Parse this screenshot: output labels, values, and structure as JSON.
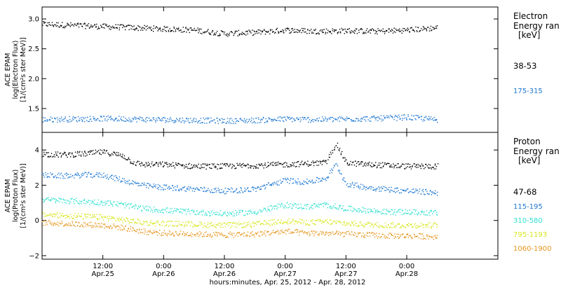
{
  "chart_data": [
    {
      "type": "scatter",
      "panel": "electron",
      "ylabel_lines": [
        "ACE EPAM",
        "log(Electron Flux)",
        "[1/(cm²s ster MeV)]"
      ],
      "ylim": [
        1.1,
        3.2
      ],
      "yticks": [
        1.5,
        2.0,
        2.5,
        3.0
      ],
      "ytick_labels": [
        "1.5",
        "2.0",
        "2.5",
        "3.0"
      ],
      "legend_title_lines": [
        "Electron",
        "Energy ran",
        "[keV]"
      ],
      "series": [
        {
          "name": "38-53",
          "color": "#000000",
          "x": [
            0,
            6,
            12,
            18,
            24,
            30,
            36,
            42,
            48,
            54,
            60,
            66,
            72,
            78
          ],
          "y": [
            2.92,
            2.9,
            2.88,
            2.86,
            2.84,
            2.82,
            2.76,
            2.78,
            2.82,
            2.8,
            2.81,
            2.8,
            2.82,
            2.86
          ]
        },
        {
          "name": "175-315",
          "color": "#1e78d2",
          "x": [
            0,
            6,
            12,
            18,
            24,
            30,
            36,
            42,
            48,
            54,
            60,
            66,
            72,
            78
          ],
          "y": [
            1.32,
            1.33,
            1.34,
            1.33,
            1.32,
            1.31,
            1.3,
            1.31,
            1.33,
            1.32,
            1.33,
            1.34,
            1.36,
            1.32
          ]
        }
      ]
    },
    {
      "type": "scatter",
      "panel": "proton",
      "ylabel_lines": [
        "ACE EPAM",
        "log(Proton Flux)",
        "[1/(cm²s ster MeV)]"
      ],
      "ylim": [
        -2.2,
        5.0
      ],
      "yticks": [
        -2,
        0,
        2,
        4
      ],
      "ytick_labels": [
        "−2",
        "0",
        "2",
        "4"
      ],
      "legend_title_lines": [
        "Proton",
        "Energy ran",
        "[keV]"
      ],
      "series": [
        {
          "name": "47-68",
          "color": "#000000",
          "x": [
            0,
            4,
            8,
            12,
            16,
            18,
            20,
            24,
            30,
            36,
            42,
            48,
            52,
            56,
            58,
            60,
            64,
            68,
            72,
            78
          ],
          "y": [
            3.8,
            3.75,
            3.8,
            3.9,
            3.7,
            3.3,
            3.2,
            3.2,
            3.1,
            3.1,
            3.15,
            3.2,
            3.25,
            3.3,
            4.4,
            3.3,
            3.2,
            3.15,
            3.1,
            3.1
          ]
        },
        {
          "name": "115-195",
          "color": "#1e78d2",
          "x": [
            0,
            4,
            8,
            12,
            16,
            20,
            24,
            30,
            36,
            42,
            48,
            52,
            56,
            58,
            60,
            64,
            68,
            72,
            78
          ],
          "y": [
            2.6,
            2.55,
            2.6,
            2.6,
            2.3,
            2.0,
            1.9,
            1.8,
            1.7,
            1.8,
            2.3,
            2.2,
            2.4,
            3.2,
            2.1,
            1.9,
            1.8,
            1.7,
            1.6
          ]
        },
        {
          "name": "310-580",
          "color": "#2fe0d0",
          "x": [
            0,
            4,
            8,
            12,
            16,
            20,
            24,
            30,
            36,
            42,
            48,
            52,
            56,
            60,
            64,
            68,
            72,
            78
          ],
          "y": [
            1.2,
            1.15,
            1.1,
            1.05,
            0.9,
            0.7,
            0.6,
            0.5,
            0.4,
            0.5,
            0.9,
            0.8,
            0.9,
            0.7,
            0.6,
            0.5,
            0.5,
            0.45
          ]
        },
        {
          "name": "795-1193",
          "color": "#d7e61e",
          "x": [
            0,
            4,
            8,
            12,
            16,
            20,
            24,
            30,
            36,
            42,
            48,
            52,
            56,
            60,
            64,
            68,
            72,
            78
          ],
          "y": [
            0.35,
            0.3,
            0.25,
            0.2,
            0.05,
            -0.1,
            -0.15,
            -0.2,
            -0.25,
            -0.2,
            0.0,
            -0.1,
            -0.05,
            -0.15,
            -0.2,
            -0.25,
            -0.25,
            -0.25
          ]
        },
        {
          "name": "1060-1900",
          "color": "#e6961e",
          "x": [
            0,
            4,
            8,
            12,
            16,
            20,
            24,
            30,
            36,
            42,
            48,
            52,
            56,
            60,
            64,
            68,
            72,
            78
          ],
          "y": [
            -0.1,
            -0.15,
            -0.2,
            -0.25,
            -0.4,
            -0.6,
            -0.7,
            -0.75,
            -0.8,
            -0.75,
            -0.6,
            -0.7,
            -0.7,
            -0.75,
            -0.8,
            -0.85,
            -0.85,
            -0.9
          ]
        }
      ]
    }
  ],
  "x_axis": {
    "range_hours": [
      0,
      90
    ],
    "ticks_hours": [
      12,
      24,
      36,
      48,
      60,
      72
    ],
    "tick_time_labels": [
      "12:00",
      "0:00",
      "12:00",
      "0:00",
      "12:00",
      "0:00"
    ],
    "tick_date_labels": [
      "Apr.25",
      "Apr.26",
      "Apr.26",
      "Apr.27",
      "Apr.27",
      "Apr.28"
    ],
    "xlabel": "hours:minutes, Apr. 25, 2012 - Apr. 28, 2012"
  }
}
